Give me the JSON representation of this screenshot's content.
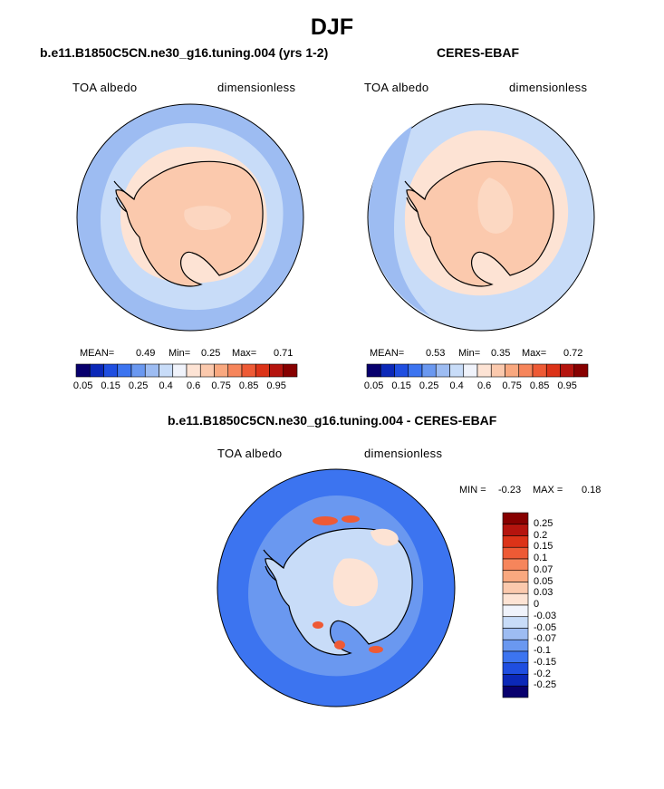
{
  "figure": {
    "season_title": "DJF"
  },
  "panel_model": {
    "title": "b.e11.B1850C5CN.ne30_g16.tuning.004 (yrs 1-2)",
    "variable": "TOA albedo",
    "units": "dimensionless",
    "mean_label": "MEAN=",
    "mean_value": "0.49",
    "min_label": "Min=",
    "min_value": "0.25",
    "max_label": "Max=",
    "max_value": "0.71"
  },
  "panel_obs": {
    "title": "CERES-EBAF",
    "variable": "TOA albedo",
    "units": "dimensionless",
    "mean_label": "MEAN=",
    "mean_value": "0.53",
    "min_label": "Min=",
    "min_value": "0.35",
    "max_label": "Max=",
    "max_value": "0.72"
  },
  "panel_diff": {
    "title": "b.e11.B1850C5CN.ne30_g16.tuning.004 - CERES-EBAF",
    "variable": "TOA albedo",
    "units": "dimensionless",
    "min_label": "MIN =",
    "min_value": "-0.23",
    "max_label": "MAX =",
    "max_value": "0.18"
  },
  "colorbar_abs": {
    "colors": [
      "#08006e",
      "#0b28b8",
      "#1f4ee0",
      "#3c74f0",
      "#6a98f0",
      "#9dbcf2",
      "#c8dcf8",
      "#f0f3fb",
      "#fde3d4",
      "#fbc9ad",
      "#f9a87f",
      "#f6855b",
      "#ee5a35",
      "#dc3318",
      "#b5140e",
      "#870000"
    ],
    "tick_labels": [
      "0.05",
      "0.15",
      "0.25",
      "0.4",
      "0.6",
      "0.75",
      "0.85",
      "0.95"
    ]
  },
  "colorbar_diff": {
    "colors": [
      "#870000",
      "#b5140e",
      "#dc3318",
      "#ee5a35",
      "#f6855b",
      "#f9a87f",
      "#fbc9ad",
      "#fde3d4",
      "#f0f3fb",
      "#c8dcf8",
      "#9dbcf2",
      "#6a98f0",
      "#3c74f0",
      "#1f4ee0",
      "#0b28b8",
      "#08006e"
    ],
    "tick_labels": [
      "0.25",
      "0.2",
      "0.15",
      "0.1",
      "0.07",
      "0.05",
      "0.03",
      "0",
      "-0.03",
      "-0.05",
      "-0.07",
      "-0.1",
      "-0.15",
      "-0.2",
      "-0.25"
    ]
  },
  "map_colors": {
    "ocean_far": "#9dbcf2",
    "ocean_mid": "#c8dcf8",
    "ice_ring": "#fde3d4",
    "continent": "#fbc9ad",
    "coast": "#000000",
    "diff_ocean": "#3c74f0",
    "diff_mid": "#6a98f0",
    "diff_land": "#c8dcf8",
    "diff_pos": "#fde3d4",
    "diff_red": "#ee5a35"
  }
}
